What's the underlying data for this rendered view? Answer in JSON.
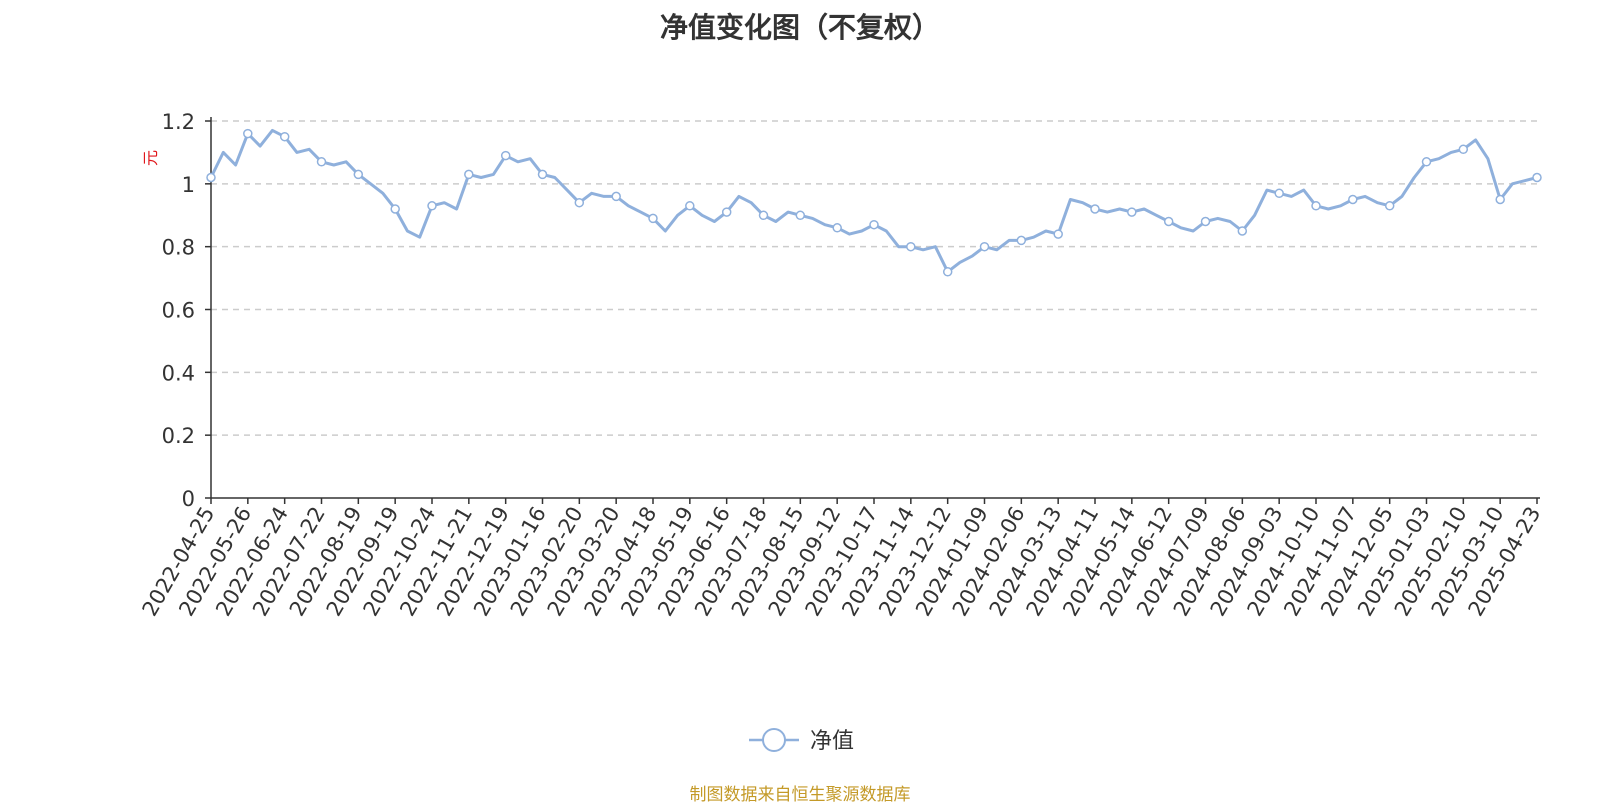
{
  "chart_data": {
    "type": "line",
    "title": "净值变化图（不复权）",
    "ylabel": "元",
    "ylim": [
      0,
      1.2
    ],
    "yticks": [
      "0",
      "0.2",
      "0.4",
      "0.6",
      "0.8",
      "1",
      "1.2"
    ],
    "ytick_values": [
      0,
      0.2,
      0.4,
      0.6,
      0.8,
      1,
      1.2
    ],
    "grid": true,
    "legend_position": "bottom-center",
    "x_labels": [
      "2022-04-25",
      "2022-05-26",
      "2022-06-24",
      "2022-07-22",
      "2022-08-19",
      "2022-09-19",
      "2022-10-24",
      "2022-11-21",
      "2022-12-19",
      "2023-01-16",
      "2023-02-20",
      "2023-03-20",
      "2023-04-18",
      "2023-05-19",
      "2023-06-16",
      "2023-07-18",
      "2023-08-15",
      "2023-09-12",
      "2023-10-17",
      "2023-11-14",
      "2023-12-12",
      "2024-01-09",
      "2024-02-06",
      "2024-03-13",
      "2024-04-11",
      "2024-05-14",
      "2024-06-12",
      "2024-07-09",
      "2024-08-06",
      "2024-09-03",
      "2024-10-10",
      "2024-11-07",
      "2024-12-05",
      "2025-01-03",
      "2025-02-10",
      "2025-03-10",
      "2025-04-23"
    ],
    "series": [
      {
        "name": "净值",
        "color": "#8fb0dc",
        "values": [
          1.02,
          1.1,
          1.06,
          1.16,
          1.12,
          1.17,
          1.15,
          1.1,
          1.11,
          1.07,
          1.06,
          1.07,
          1.03,
          1.0,
          0.97,
          0.92,
          0.85,
          0.83,
          0.93,
          0.94,
          0.92,
          1.03,
          1.02,
          1.03,
          1.09,
          1.07,
          1.08,
          1.03,
          1.02,
          0.98,
          0.94,
          0.97,
          0.96,
          0.96,
          0.93,
          0.91,
          0.89,
          0.85,
          0.9,
          0.93,
          0.9,
          0.88,
          0.91,
          0.96,
          0.94,
          0.9,
          0.88,
          0.91,
          0.9,
          0.89,
          0.87,
          0.86,
          0.84,
          0.85,
          0.87,
          0.85,
          0.8,
          0.8,
          0.79,
          0.8,
          0.72,
          0.75,
          0.77,
          0.8,
          0.79,
          0.82,
          0.82,
          0.83,
          0.85,
          0.84,
          0.95,
          0.94,
          0.92,
          0.91,
          0.92,
          0.91,
          0.92,
          0.9,
          0.88,
          0.86,
          0.85,
          0.88,
          0.89,
          0.88,
          0.85,
          0.9,
          0.98,
          0.97,
          0.96,
          0.98,
          0.93,
          0.92,
          0.93,
          0.95,
          0.96,
          0.94,
          0.93,
          0.96,
          1.02,
          1.07,
          1.08,
          1.1,
          1.11,
          1.14,
          1.08,
          0.95,
          1.0,
          1.01,
          1.02
        ]
      }
    ],
    "source_note": "制图数据来自恒生聚源数据库"
  }
}
